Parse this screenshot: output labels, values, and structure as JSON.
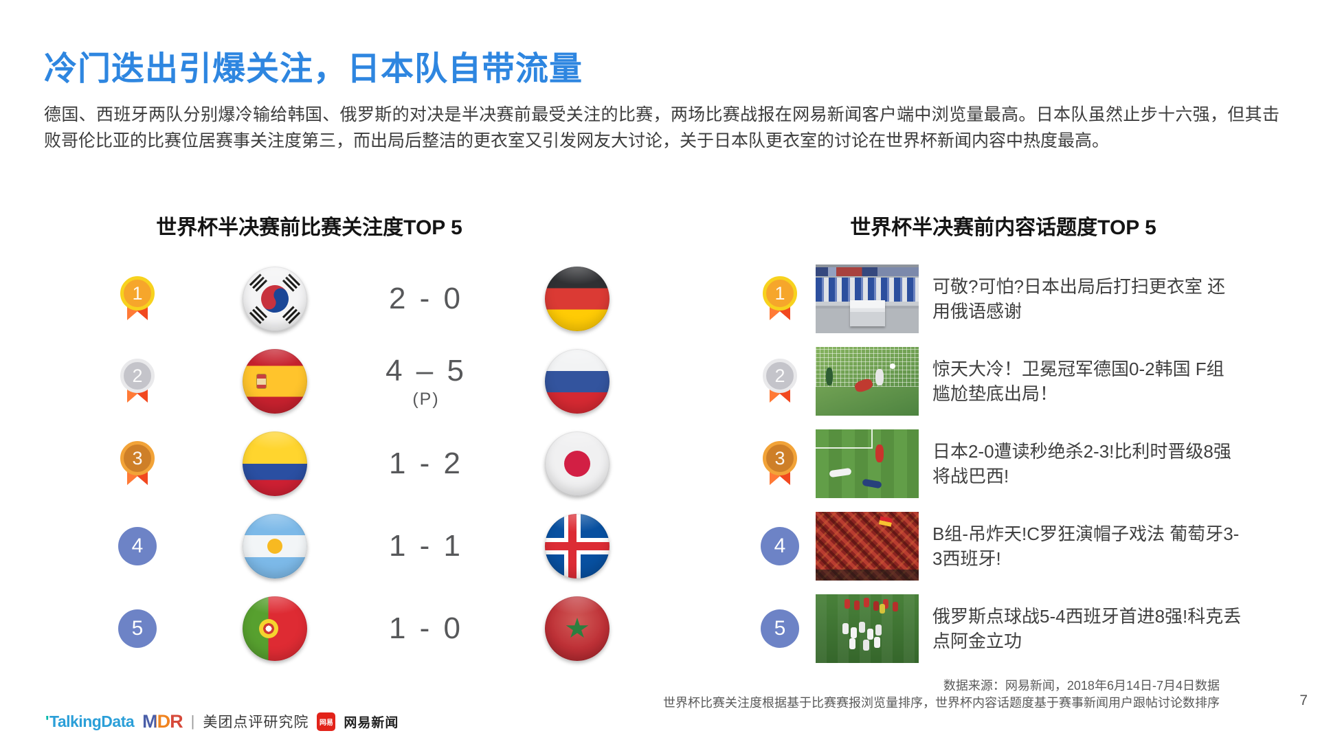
{
  "slide": {
    "title": "冷门迭出引爆关注，日本队自带流量",
    "paragraph": "德国、西班牙两队分别爆冷输给韩国、俄罗斯的对决是半决赛前最受关注的比赛，两场比赛战报在网易新闻客户端中浏览量最高。日本队虽然止步十六强，但其击败哥伦比亚的比赛位居赛事关注度第三，而出局后整洁的更衣室又引发网友大讨论，关于日本队更衣室的讨论在世界杯新闻内容中热度最高。",
    "page_number": "7"
  },
  "left_panel": {
    "title": "世界杯半决赛前比赛关注度TOP 5",
    "rows": [
      {
        "rank": "1",
        "medal": "gold",
        "team1": "south-korea",
        "score": "2 - 0",
        "note": "",
        "team2": "germany"
      },
      {
        "rank": "2",
        "medal": "silver",
        "team1": "spain",
        "score": "4 – 5",
        "note": "(P)",
        "team2": "russia"
      },
      {
        "rank": "3",
        "medal": "bronze",
        "team1": "colombia",
        "score": "1 - 2",
        "note": "",
        "team2": "japan"
      },
      {
        "rank": "4",
        "medal": "none",
        "team1": "argentina",
        "score": "1 - 1",
        "note": "",
        "team2": "iceland"
      },
      {
        "rank": "5",
        "medal": "none",
        "team1": "portugal",
        "score": "1 - 0",
        "note": "",
        "team2": "morocco"
      }
    ]
  },
  "right_panel": {
    "title": "世界杯半决赛前内容话题度TOP 5",
    "rows": [
      {
        "rank": "1",
        "medal": "gold",
        "thumbnail": "japan-locker-room",
        "headline": "可敬?可怕?日本出局后打扫更衣室 还用俄语感谢"
      },
      {
        "rank": "2",
        "medal": "silver",
        "thumbnail": "germany-korea-goal",
        "headline": "惊天大冷！卫冕冠军德国0-2韩国 F组尴尬垫底出局！"
      },
      {
        "rank": "3",
        "medal": "bronze",
        "thumbnail": "japan-belgium-players",
        "headline": "日本2-0遭读秒绝杀2-3!比利时晋级8强将战巴西!"
      },
      {
        "rank": "4",
        "medal": "none",
        "thumbnail": "portugal-spain-crowd",
        "headline": "B组-吊炸天!C罗狂演帽子戏法 葡萄牙3-3西班牙!"
      },
      {
        "rank": "5",
        "medal": "none",
        "thumbnail": "russia-spain-celebration",
        "headline": "俄罗斯点球战5-4西班牙首进8强!科克丢点阿金立功"
      }
    ]
  },
  "footer": {
    "source_line1": "数据来源：网易新闻，2018年6月14日-7月4日数据",
    "source_line2": "世界杯比赛关注度根据基于比赛赛报浏览量排序，世界杯内容话题度基于赛事新闻用户跟帖讨论数排序",
    "logos": {
      "tick": "'",
      "talkingdata": "TalkingData",
      "mdr": "MDR",
      "separator": "|",
      "meituan": "美团点评研究院",
      "netease_badge": "网易",
      "netease": "网易新闻"
    }
  },
  "colors": {
    "title_blue": "#2E86E0",
    "body_text": "#3C3C3C",
    "score_text": "#57585A",
    "gold_ring": "#F7D21E",
    "silver_ring": "#E9E9EB",
    "bronze_ring": "#F2A338",
    "ribbon_orange": "#FF5A22",
    "rank_blue": "#6D83C6"
  }
}
